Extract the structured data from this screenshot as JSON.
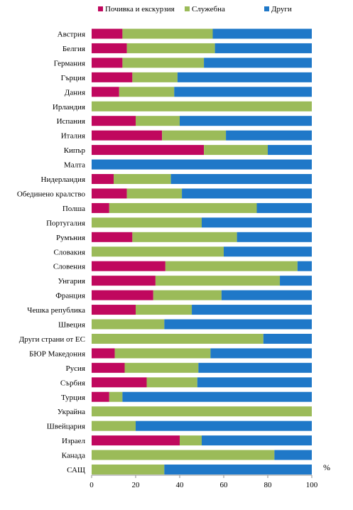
{
  "chart_data": {
    "type": "bar",
    "orientation": "horizontal",
    "stacked": true,
    "categories": [
      "Австрия",
      "Белгия",
      "Германия",
      "Гърция",
      "Дания",
      "Ирландия",
      "Испания",
      "Италия",
      "Кипър",
      "Малта",
      "Нидерландия",
      "Обединено кралство",
      "Полша",
      "Португалия",
      "Румъния",
      "Словакия",
      "Словения",
      "Унгария",
      "Франция",
      "Чешка република",
      "Швеция",
      "Други страни от ЕС",
      "БЮР Македония",
      "Русия",
      "Сърбия",
      "Турция",
      "Украйна",
      "Швейцария",
      "Израел",
      "Канада",
      "САЩ"
    ],
    "series": [
      {
        "name": "Почивка и екскурзия",
        "color": "#C0085E",
        "values": [
          14,
          16,
          14,
          18.5,
          12.5,
          0,
          20,
          32,
          51,
          0,
          10,
          16,
          8,
          0,
          18.5,
          0,
          33.5,
          29,
          28,
          20,
          0,
          0,
          10.5,
          15,
          25,
          8,
          0,
          0,
          40,
          0,
          0
        ]
      },
      {
        "name": "Служебна",
        "color": "#9BBB59",
        "values": [
          41,
          40,
          37,
          20.5,
          25,
          100,
          20,
          29,
          29,
          0,
          26,
          25,
          67,
          50,
          47.5,
          60,
          60,
          56.5,
          31,
          25.5,
          33,
          78,
          43.5,
          33.5,
          23,
          6,
          100,
          20,
          10,
          83,
          33
        ]
      },
      {
        "name": "Други",
        "color": "#1F78C8",
        "values": [
          45,
          44,
          49,
          61,
          62.5,
          0,
          60,
          39,
          20,
          100,
          64,
          59,
          25,
          50,
          34,
          40,
          6.5,
          14.5,
          41,
          54.5,
          67,
          22,
          46,
          51.5,
          52,
          86,
          0,
          80,
          50,
          17,
          67
        ]
      }
    ],
    "xlim": [
      0,
      100
    ],
    "xticks": [
      "0",
      "20",
      "40",
      "60",
      "80",
      "100"
    ],
    "unit_label": "%",
    "legend_position": "top",
    "grid": false
  }
}
